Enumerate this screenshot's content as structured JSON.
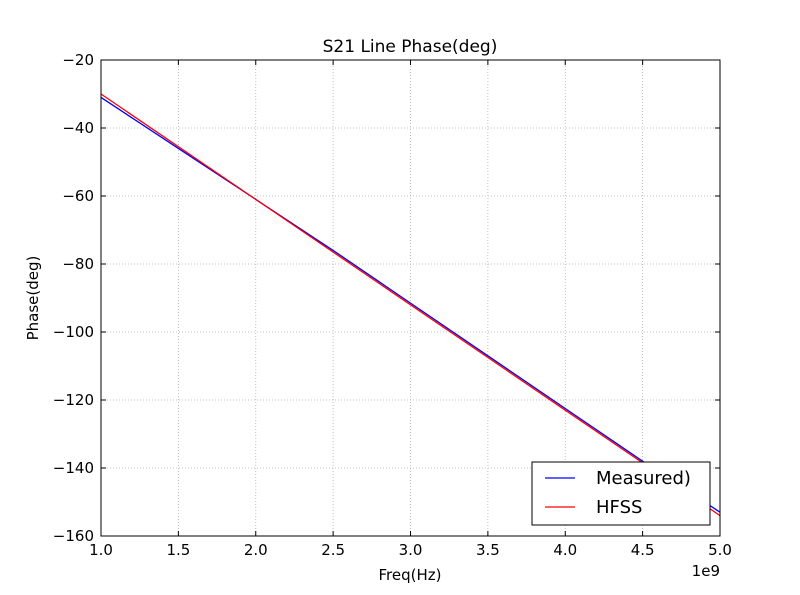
{
  "chart_data": {
    "type": "line",
    "title": "S21 Line Phase(deg)",
    "xlabel": "Freq(Hz)",
    "ylabel": "Phase(deg)",
    "x_offset_text": "1e9",
    "xlim": [
      1.0,
      5.0
    ],
    "ylim": [
      -160,
      -20
    ],
    "x_ticks": [
      1.0,
      1.5,
      2.0,
      2.5,
      3.0,
      3.5,
      4.0,
      4.5,
      5.0
    ],
    "x_tick_labels": [
      "1.0",
      "1.5",
      "2.0",
      "2.5",
      "3.0",
      "3.5",
      "4.0",
      "4.5",
      "5.0"
    ],
    "y_ticks": [
      -20,
      -40,
      -60,
      -80,
      -100,
      -120,
      -140,
      -160
    ],
    "y_tick_labels": [
      "−20",
      "−40",
      "−60",
      "−80",
      "−100",
      "−120",
      "−140",
      "−160"
    ],
    "grid": true,
    "legend_position": "bottom-right",
    "series": [
      {
        "name": "Measured)",
        "color": "#0000ff",
        "x": [
          1.0,
          1.5,
          2.0,
          2.5,
          3.0,
          3.5,
          4.0,
          4.5,
          5.0
        ],
        "y": [
          -31,
          -46,
          -61,
          -76,
          -91.5,
          -107,
          -122.5,
          -138,
          -153
        ]
      },
      {
        "name": "HFSS",
        "color": "#ff0000",
        "x": [
          1.0,
          1.5,
          2.0,
          2.5,
          3.0,
          3.5,
          4.0,
          4.5,
          5.0
        ],
        "y": [
          -30,
          -45.5,
          -61,
          -76.5,
          -92,
          -107.5,
          -123,
          -138.5,
          -154
        ]
      }
    ]
  }
}
